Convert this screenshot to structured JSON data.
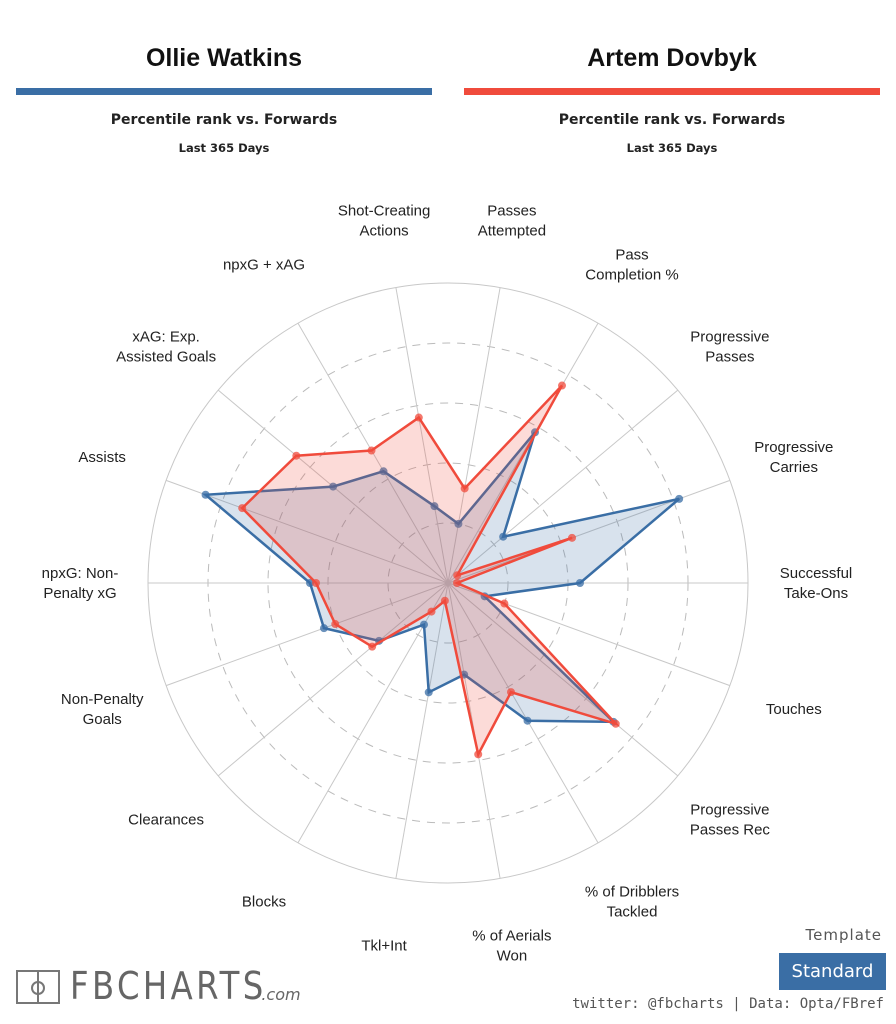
{
  "header": {
    "player1": {
      "name": "Ollie Watkins",
      "subtitle": "Percentile rank vs. Forwards",
      "period": "Last 365 Days",
      "color": "#3a6ea5"
    },
    "player2": {
      "name": "Artem Dovbyk",
      "subtitle": "Percentile rank vs. Forwards",
      "period": "Last 365 Days",
      "color": "#f04b3c"
    }
  },
  "chart_data": {
    "type": "radar",
    "range": [
      0,
      100
    ],
    "grid": "dashed rings every 20",
    "categories": [
      [
        "Passes",
        "Attempted"
      ],
      [
        "Pass",
        "Completion %"
      ],
      [
        "Progressive",
        "Passes"
      ],
      [
        "Progressive",
        "Carries"
      ],
      [
        "Successful",
        "Take-Ons"
      ],
      [
        "Touches"
      ],
      [
        "Progressive",
        "Passes Rec"
      ],
      [
        "% of Dribblers",
        "Tackled"
      ],
      [
        "% of Aerials",
        "Won"
      ],
      [
        "Tkl+Int"
      ],
      [
        "Blocks"
      ],
      [
        "Clearances"
      ],
      [
        "Non-Penalty",
        "Goals"
      ],
      [
        "npxG: Non-",
        "Penalty xG"
      ],
      [
        "Assists"
      ],
      [
        "xAG: Exp.",
        "Assisted Goals"
      ],
      [
        "npxG + xAG"
      ],
      [
        "Shot-Creating",
        "Actions"
      ]
    ],
    "series": [
      {
        "name": "Ollie Watkins",
        "color": "#3a6ea5",
        "values": [
          20,
          58,
          24,
          82,
          44,
          13,
          72,
          53,
          31,
          37,
          16,
          30,
          44,
          46,
          86,
          50,
          43,
          26
        ]
      },
      {
        "name": "Artem Dovbyk",
        "color": "#f04b3c",
        "values": [
          32,
          76,
          4,
          44,
          3,
          20,
          73,
          42,
          58,
          6,
          11,
          33,
          40,
          44,
          73,
          66,
          51,
          56
        ]
      }
    ]
  },
  "footer": {
    "logo": "FBCHARTS",
    "logo_suffix": ".com",
    "template_label": "Template",
    "template_value": "Standard",
    "credit": "twitter: @fbcharts | Data: Opta/FBref"
  }
}
